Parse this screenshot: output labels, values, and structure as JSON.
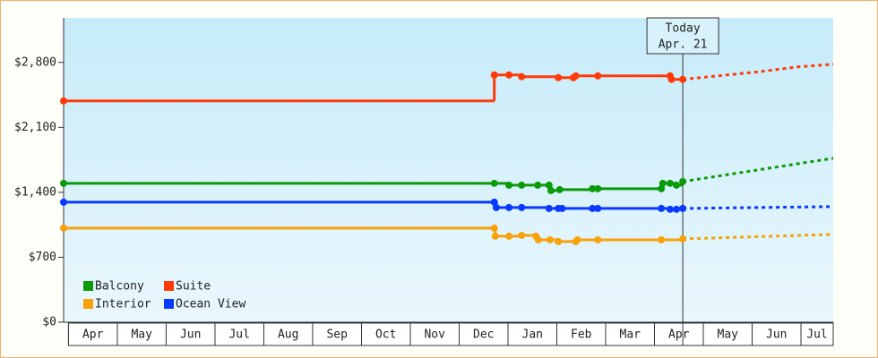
{
  "chart_data": {
    "type": "step-line",
    "xlim": [
      -0.1,
      15.66
    ],
    "xticks": [
      {
        "value": 0.5,
        "label": "Apr"
      },
      {
        "value": 1.5,
        "label": "May"
      },
      {
        "value": 2.5,
        "label": "Jun"
      },
      {
        "value": 3.5,
        "label": "Jul"
      },
      {
        "value": 4.5,
        "label": "Aug"
      },
      {
        "value": 5.5,
        "label": "Sep"
      },
      {
        "value": 6.5,
        "label": "Oct"
      },
      {
        "value": 7.5,
        "label": "Nov"
      },
      {
        "value": 8.5,
        "label": "Dec"
      },
      {
        "value": 9.5,
        "label": "Jan"
      },
      {
        "value": 10.5,
        "label": "Feb"
      },
      {
        "value": 11.5,
        "label": "Mar"
      },
      {
        "value": 12.5,
        "label": "Apr"
      },
      {
        "value": 13.5,
        "label": "May"
      },
      {
        "value": 14.5,
        "label": "Jun"
      },
      {
        "value": 15.33,
        "label": "Jul"
      }
    ],
    "ylim": [
      0,
      3280
    ],
    "yticks": [
      {
        "value": 0,
        "label": "$0"
      },
      {
        "value": 700,
        "label": "$700"
      },
      {
        "value": 1400,
        "label": "$1,400"
      },
      {
        "value": 2100,
        "label": "$2,100"
      },
      {
        "value": 2800,
        "label": "$2,800"
      }
    ],
    "today": {
      "x": 12.58,
      "label": "Today",
      "date": "Apr. 21"
    },
    "series": [
      {
        "name": "Balcony",
        "color": "#0a9a0a",
        "x": [
          -0.1,
          8.72,
          9.02,
          9.28,
          9.61,
          9.84,
          9.88,
          10.06,
          10.73,
          10.84,
          12.14,
          12.17,
          12.32,
          12.45,
          12.58
        ],
        "values": [
          1497,
          1497,
          1477,
          1477,
          1477,
          1477,
          1419,
          1429,
          1439,
          1439,
          1439,
          1497,
          1497,
          1477,
          1516
        ],
        "forecast_x": [
          12.58,
          15.66
        ],
        "forecast_values": [
          1516,
          1767
        ]
      },
      {
        "name": "Suite",
        "color": "#ff3a0a",
        "x": [
          -0.1,
          8.72,
          9.02,
          9.28,
          10.03,
          10.34,
          10.39,
          10.84,
          12.32,
          12.35,
          12.58
        ],
        "values": [
          2385,
          2665,
          2665,
          2646,
          2636,
          2636,
          2655,
          2655,
          2655,
          2617,
          2617
        ],
        "forecast_x": [
          12.58,
          14.2,
          14.93,
          15.66
        ],
        "forecast_values": [
          2617,
          2703,
          2752,
          2781
        ]
      },
      {
        "name": "Interior",
        "color": "#f7a20a",
        "x": [
          -0.1,
          8.72,
          8.74,
          9.02,
          9.28,
          9.57,
          9.62,
          9.86,
          10.03,
          10.39,
          10.42,
          10.84,
          12.14,
          12.58
        ],
        "values": [
          1014,
          1014,
          927,
          927,
          936,
          927,
          888,
          888,
          869,
          869,
          888,
          888,
          888,
          898
        ],
        "forecast_x": [
          12.58,
          15.66
        ],
        "forecast_values": [
          898,
          946
        ]
      },
      {
        "name": "Ocean View",
        "color": "#0a3aff",
        "x": [
          -0.1,
          8.72,
          8.76,
          9.02,
          9.28,
          9.84,
          10.03,
          10.11,
          10.73,
          10.84,
          12.14,
          12.32,
          12.45,
          12.58
        ],
        "values": [
          1294,
          1294,
          1236,
          1236,
          1236,
          1226,
          1226,
          1226,
          1226,
          1226,
          1226,
          1217,
          1217,
          1226
        ],
        "forecast_x": [
          12.58,
          15.66
        ],
        "forecast_values": [
          1226,
          1246
        ]
      }
    ]
  }
}
